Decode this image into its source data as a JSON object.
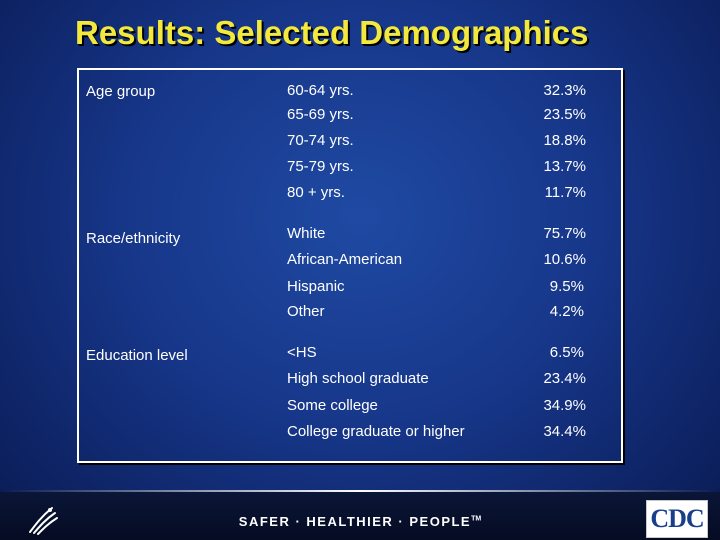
{
  "title": "Results: Selected Demographics",
  "sections": {
    "age": {
      "label": "Age group",
      "rows": [
        {
          "label": "60-64 yrs.",
          "value": "32.3%"
        },
        {
          "label": "65-69 yrs.",
          "value": "23.5%"
        },
        {
          "label": "70-74 yrs.",
          "value": "18.8%"
        },
        {
          "label": "75-79 yrs.",
          "value": "13.7%"
        },
        {
          "label": "80 + yrs.",
          "value": "11.7%"
        }
      ]
    },
    "race": {
      "label": "Race/ethnicity",
      "rows": [
        {
          "label": "White",
          "value": "75.7%"
        },
        {
          "label": "African-American",
          "value": "10.6%"
        },
        {
          "label": "Hispanic",
          "value": "9.5%"
        },
        {
          "label": "Other",
          "value": "4.2%"
        }
      ]
    },
    "education": {
      "label": "Education level",
      "rows": [
        {
          "label": "<HS",
          "value": "6.5%"
        },
        {
          "label": "High school graduate",
          "value": "23.4%"
        },
        {
          "label": "Some college",
          "value": "34.9%"
        },
        {
          "label": "College graduate or higher",
          "value": "34.4%"
        }
      ]
    }
  },
  "footer": {
    "tagline": "SAFER · HEALTHIER · PEOPLE",
    "tagline_mark": "TM",
    "cdc_logo_text": "CDC",
    "hhs_logo_icon": "hhs-eagle-logo-icon"
  }
}
